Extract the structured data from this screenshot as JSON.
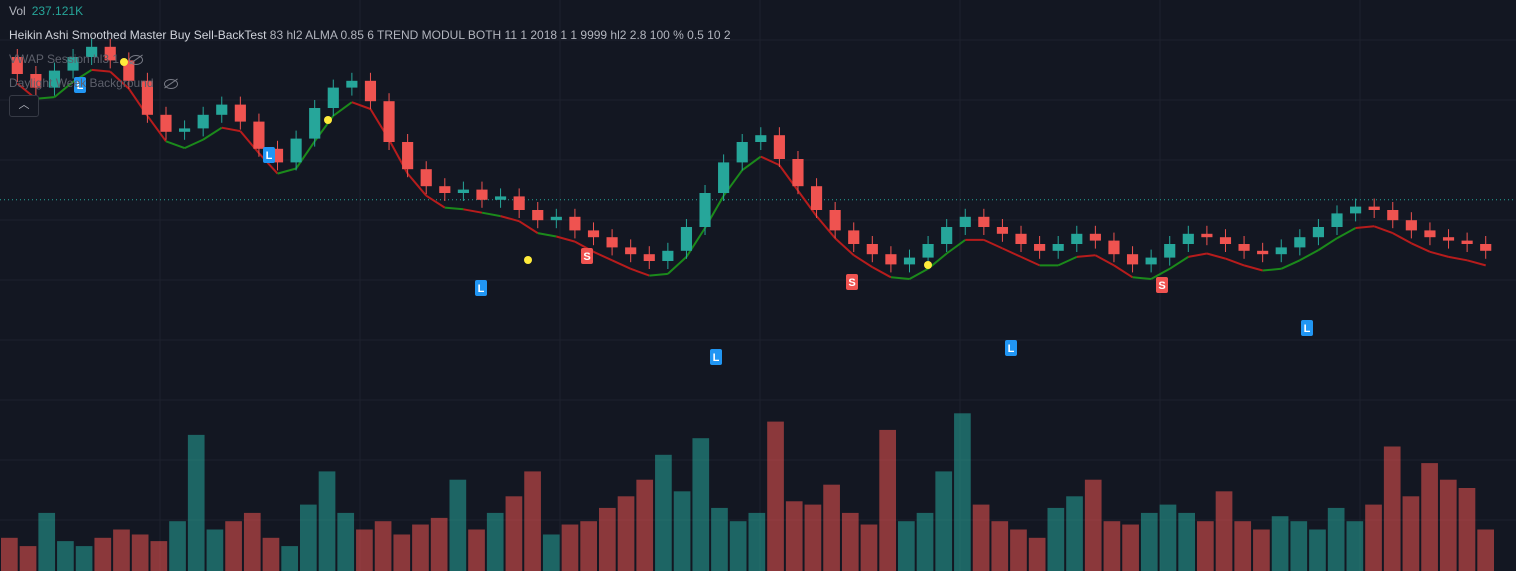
{
  "legend": {
    "vol_label": "Vol",
    "vol_value": "237.121K",
    "indicator": "Heikin Ashi Smoothed Master Buy Sell-BackTest",
    "indicator_params": "83 hl2 ALMA 0.85 6 TREND MODUL BOTH 11 1 2018 1 1 9999 hl2 2.8 100 % 0.5 10 2",
    "vwap": "VWAP Session hl3 1",
    "background": "Daylight Week Background",
    "collapse_icon": "chevron-up-icon"
  },
  "colors": {
    "background": "#131722",
    "grid": "#1e222d",
    "up": "#26a69a",
    "down": "#ef5350",
    "vol_up": "#26a69a",
    "vol_down": "#ef5350",
    "trend_up": "#1b8a1b",
    "trend_down": "#b71c1c",
    "long_label": "#2196f3",
    "short_label": "#ef5350",
    "entry_marker": "#d500f9"
  },
  "chart_data": {
    "type": "candlestick",
    "style": "Heikin Ashi",
    "price_levels": [
      {
        "name": "last_price",
        "y": 0.47
      }
    ],
    "candles_open_close": [
      [
        0.05,
        0.1
      ],
      [
        0.1,
        0.14
      ],
      [
        0.14,
        0.09
      ],
      [
        0.09,
        0.05
      ],
      [
        0.05,
        0.02
      ],
      [
        0.02,
        0.06
      ],
      [
        0.06,
        0.12
      ],
      [
        0.12,
        0.22
      ],
      [
        0.22,
        0.27
      ],
      [
        0.27,
        0.26
      ],
      [
        0.26,
        0.22
      ],
      [
        0.22,
        0.19
      ],
      [
        0.19,
        0.24
      ],
      [
        0.24,
        0.32
      ],
      [
        0.32,
        0.36
      ],
      [
        0.36,
        0.29
      ],
      [
        0.29,
        0.2
      ],
      [
        0.2,
        0.14
      ],
      [
        0.14,
        0.12
      ],
      [
        0.12,
        0.18
      ],
      [
        0.18,
        0.3
      ],
      [
        0.3,
        0.38
      ],
      [
        0.38,
        0.43
      ],
      [
        0.43,
        0.45
      ],
      [
        0.45,
        0.44
      ],
      [
        0.44,
        0.47
      ],
      [
        0.47,
        0.46
      ],
      [
        0.46,
        0.5
      ],
      [
        0.5,
        0.53
      ],
      [
        0.53,
        0.52
      ],
      [
        0.52,
        0.56
      ],
      [
        0.56,
        0.58
      ],
      [
        0.58,
        0.61
      ],
      [
        0.61,
        0.63
      ],
      [
        0.63,
        0.65
      ],
      [
        0.65,
        0.62
      ],
      [
        0.62,
        0.55
      ],
      [
        0.55,
        0.45
      ],
      [
        0.45,
        0.36
      ],
      [
        0.36,
        0.3
      ],
      [
        0.3,
        0.28
      ],
      [
        0.28,
        0.35
      ],
      [
        0.35,
        0.43
      ],
      [
        0.43,
        0.5
      ],
      [
        0.5,
        0.56
      ],
      [
        0.56,
        0.6
      ],
      [
        0.6,
        0.63
      ],
      [
        0.63,
        0.66
      ],
      [
        0.66,
        0.64
      ],
      [
        0.64,
        0.6
      ],
      [
        0.6,
        0.55
      ],
      [
        0.55,
        0.52
      ],
      [
        0.52,
        0.55
      ],
      [
        0.55,
        0.57
      ],
      [
        0.57,
        0.6
      ],
      [
        0.6,
        0.62
      ],
      [
        0.62,
        0.6
      ],
      [
        0.6,
        0.57
      ],
      [
        0.57,
        0.59
      ],
      [
        0.59,
        0.63
      ],
      [
        0.63,
        0.66
      ],
      [
        0.66,
        0.64
      ],
      [
        0.64,
        0.6
      ],
      [
        0.6,
        0.57
      ],
      [
        0.57,
        0.58
      ],
      [
        0.58,
        0.6
      ],
      [
        0.6,
        0.62
      ],
      [
        0.62,
        0.63
      ],
      [
        0.63,
        0.61
      ],
      [
        0.61,
        0.58
      ],
      [
        0.58,
        0.55
      ],
      [
        0.55,
        0.51
      ],
      [
        0.51,
        0.49
      ],
      [
        0.49,
        0.5
      ],
      [
        0.5,
        0.53
      ],
      [
        0.53,
        0.56
      ],
      [
        0.56,
        0.58
      ],
      [
        0.58,
        0.59
      ],
      [
        0.59,
        0.6
      ],
      [
        0.6,
        0.62
      ]
    ],
    "volume": [
      0.2,
      0.15,
      0.35,
      0.18,
      0.15,
      0.2,
      0.25,
      0.22,
      0.18,
      0.3,
      0.82,
      0.25,
      0.3,
      0.35,
      0.2,
      0.15,
      0.4,
      0.6,
      0.35,
      0.25,
      0.3,
      0.22,
      0.28,
      0.32,
      0.55,
      0.25,
      0.35,
      0.45,
      0.6,
      0.22,
      0.28,
      0.3,
      0.38,
      0.45,
      0.55,
      0.7,
      0.48,
      0.8,
      0.38,
      0.3,
      0.35,
      0.9,
      0.42,
      0.4,
      0.52,
      0.35,
      0.28,
      0.85,
      0.3,
      0.35,
      0.6,
      0.95,
      0.4,
      0.3,
      0.25,
      0.2,
      0.38,
      0.45,
      0.55,
      0.3,
      0.28,
      0.35,
      0.4,
      0.35,
      0.3,
      0.48,
      0.3,
      0.25,
      0.33,
      0.3,
      0.25,
      0.38,
      0.3,
      0.4,
      0.75,
      0.45,
      0.65,
      0.55,
      0.5,
      0.25
    ]
  }
}
